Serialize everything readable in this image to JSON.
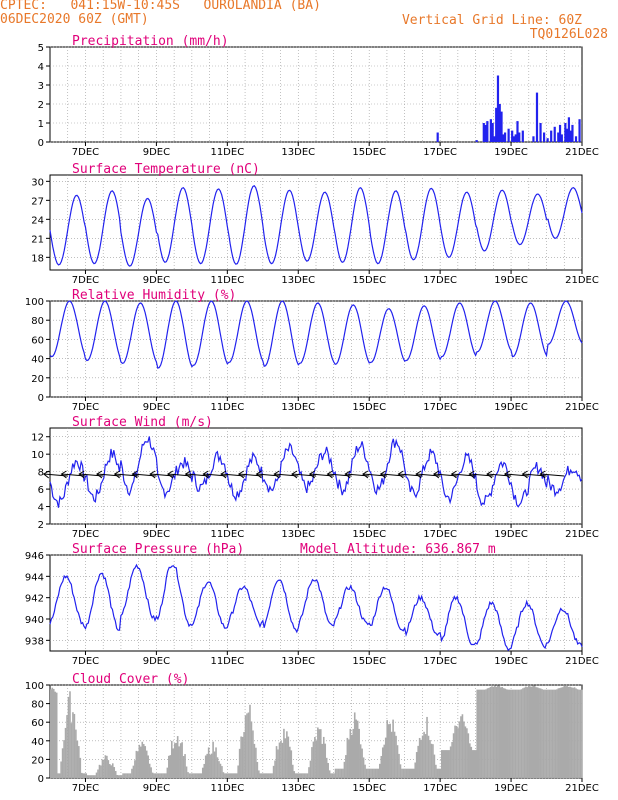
{
  "header": {
    "line1": "CPTEC:   041:15W-10:45S   OUROLANDIA (BA)",
    "line2": "06DEC2020 60Z (GMT)",
    "grid_note": "Vertical Grid Line: 60Z",
    "code": "TQ0126L028"
  },
  "colors": {
    "header": "#e8782a",
    "title": "#e0007a",
    "series": "#2222ee",
    "cloud": "#aaaaaa",
    "grid": "#999999"
  },
  "x_tick_labels": [
    "7DEC",
    "9DEC",
    "11DEC",
    "13DEC",
    "15DEC",
    "17DEC",
    "19DEC",
    "21DEC"
  ],
  "chart_data": [
    {
      "type": "bar",
      "title": "Precipitation (mm/h)",
      "xlim_days": [
        6.0,
        21.0
      ],
      "ylim": [
        0,
        5
      ],
      "yticks": [
        0,
        1,
        2,
        3,
        4,
        5
      ],
      "x_days": [
        16.9,
        18.0,
        18.2,
        18.25,
        18.3,
        18.4,
        18.45,
        18.5,
        18.55,
        18.6,
        18.65,
        18.7,
        18.75,
        18.8,
        18.9,
        19.0,
        19.05,
        19.1,
        19.15,
        19.2,
        19.3,
        19.6,
        19.7,
        19.8,
        19.9,
        20.0,
        20.1,
        20.2,
        20.3,
        20.35,
        20.4,
        20.5,
        20.55,
        20.6,
        20.65,
        20.7,
        20.8,
        20.9
      ],
      "values": [
        0.5,
        0.1,
        1.0,
        0.9,
        1.1,
        1.2,
        1.0,
        0.3,
        1.8,
        3.5,
        2.0,
        1.6,
        0.4,
        0.5,
        0.7,
        0.6,
        0.3,
        0.4,
        1.1,
        0.5,
        0.6,
        0.3,
        2.6,
        1.0,
        0.5,
        0.2,
        0.6,
        0.8,
        0.5,
        0.9,
        0.4,
        1.0,
        0.7,
        1.3,
        0.6,
        0.9,
        0.3,
        1.2
      ]
    },
    {
      "type": "line",
      "title": "Surface Temperature (nC)",
      "xlim_days": [
        6.0,
        21.0
      ],
      "ylim": [
        16,
        31
      ],
      "yticks": [
        18,
        21,
        24,
        27,
        30
      ],
      "max": [
        27.8,
        28.5,
        27.3,
        29.0,
        28.8,
        29.3,
        28.6,
        28.3,
        29.0,
        28.5,
        28.9,
        28.3,
        28.6,
        28.0,
        29.0
      ],
      "min": [
        16.8,
        17.0,
        16.6,
        17.2,
        17.0,
        16.9,
        17.0,
        17.4,
        17.2,
        17.0,
        17.6,
        18.0,
        19.0,
        20.0,
        21.0
      ]
    },
    {
      "type": "line",
      "title": "Relative Humidity (%)",
      "xlim_days": [
        6.0,
        21.0
      ],
      "ylim": [
        0,
        100
      ],
      "yticks": [
        0,
        20,
        40,
        60,
        80,
        100
      ],
      "max": [
        100,
        100,
        98,
        100,
        100,
        100,
        100,
        98,
        96,
        92,
        95,
        98,
        100,
        98,
        100
      ],
      "min": [
        42,
        38,
        35,
        30,
        33,
        36,
        32,
        35,
        34,
        36,
        38,
        42,
        47,
        42,
        55
      ]
    },
    {
      "type": "line",
      "title": "Surface Wind (m/s)",
      "xlim_days": [
        6.0,
        21.0
      ],
      "ylim": [
        2,
        13
      ],
      "yticks": [
        2,
        4,
        6,
        8,
        10,
        12
      ],
      "max": [
        9.2,
        10.0,
        11.8,
        9.0,
        9.8,
        9.5,
        10.5,
        10.2,
        11.0,
        11.5,
        10.0,
        9.5,
        9.0,
        8.5,
        8.5
      ],
      "min": [
        4.5,
        5.0,
        6.0,
        5.8,
        6.2,
        5.5,
        6.0,
        6.2,
        6.0,
        6.0,
        5.5,
        5.0,
        4.5,
        4.5,
        6.0
      ]
    },
    {
      "type": "line",
      "title": "Surface Pressure (hPa)",
      "annotation": "Model Altitude: 636.867 m",
      "xlim_days": [
        6.0,
        21.0
      ],
      "ylim": [
        937,
        946
      ],
      "yticks": [
        938,
        940,
        942,
        944,
        946
      ],
      "max": [
        944.0,
        944.3,
        945.0,
        945.2,
        943.5,
        943.0,
        943.8,
        943.8,
        943.0,
        943.0,
        942.0,
        942.0,
        941.5,
        941.5,
        941.0
      ],
      "min": [
        939.5,
        939.0,
        940.0,
        939.5,
        939.2,
        939.5,
        939.0,
        939.3,
        939.5,
        939.0,
        938.5,
        937.5,
        937.2,
        937.5,
        937.5
      ]
    },
    {
      "type": "bar",
      "title": "Cloud Cover (%)",
      "xlim_days": [
        6.0,
        21.0
      ],
      "ylim": [
        0,
        100
      ],
      "yticks": [
        0,
        20,
        40,
        60,
        80,
        100
      ],
      "daily_peak": [
        95,
        25,
        40,
        55,
        40,
        85,
        60,
        60,
        75,
        70,
        70,
        70,
        100,
        100,
        100
      ],
      "daily_base": [
        5,
        3,
        5,
        5,
        5,
        5,
        5,
        5,
        10,
        10,
        10,
        30,
        95,
        95,
        95
      ]
    }
  ]
}
